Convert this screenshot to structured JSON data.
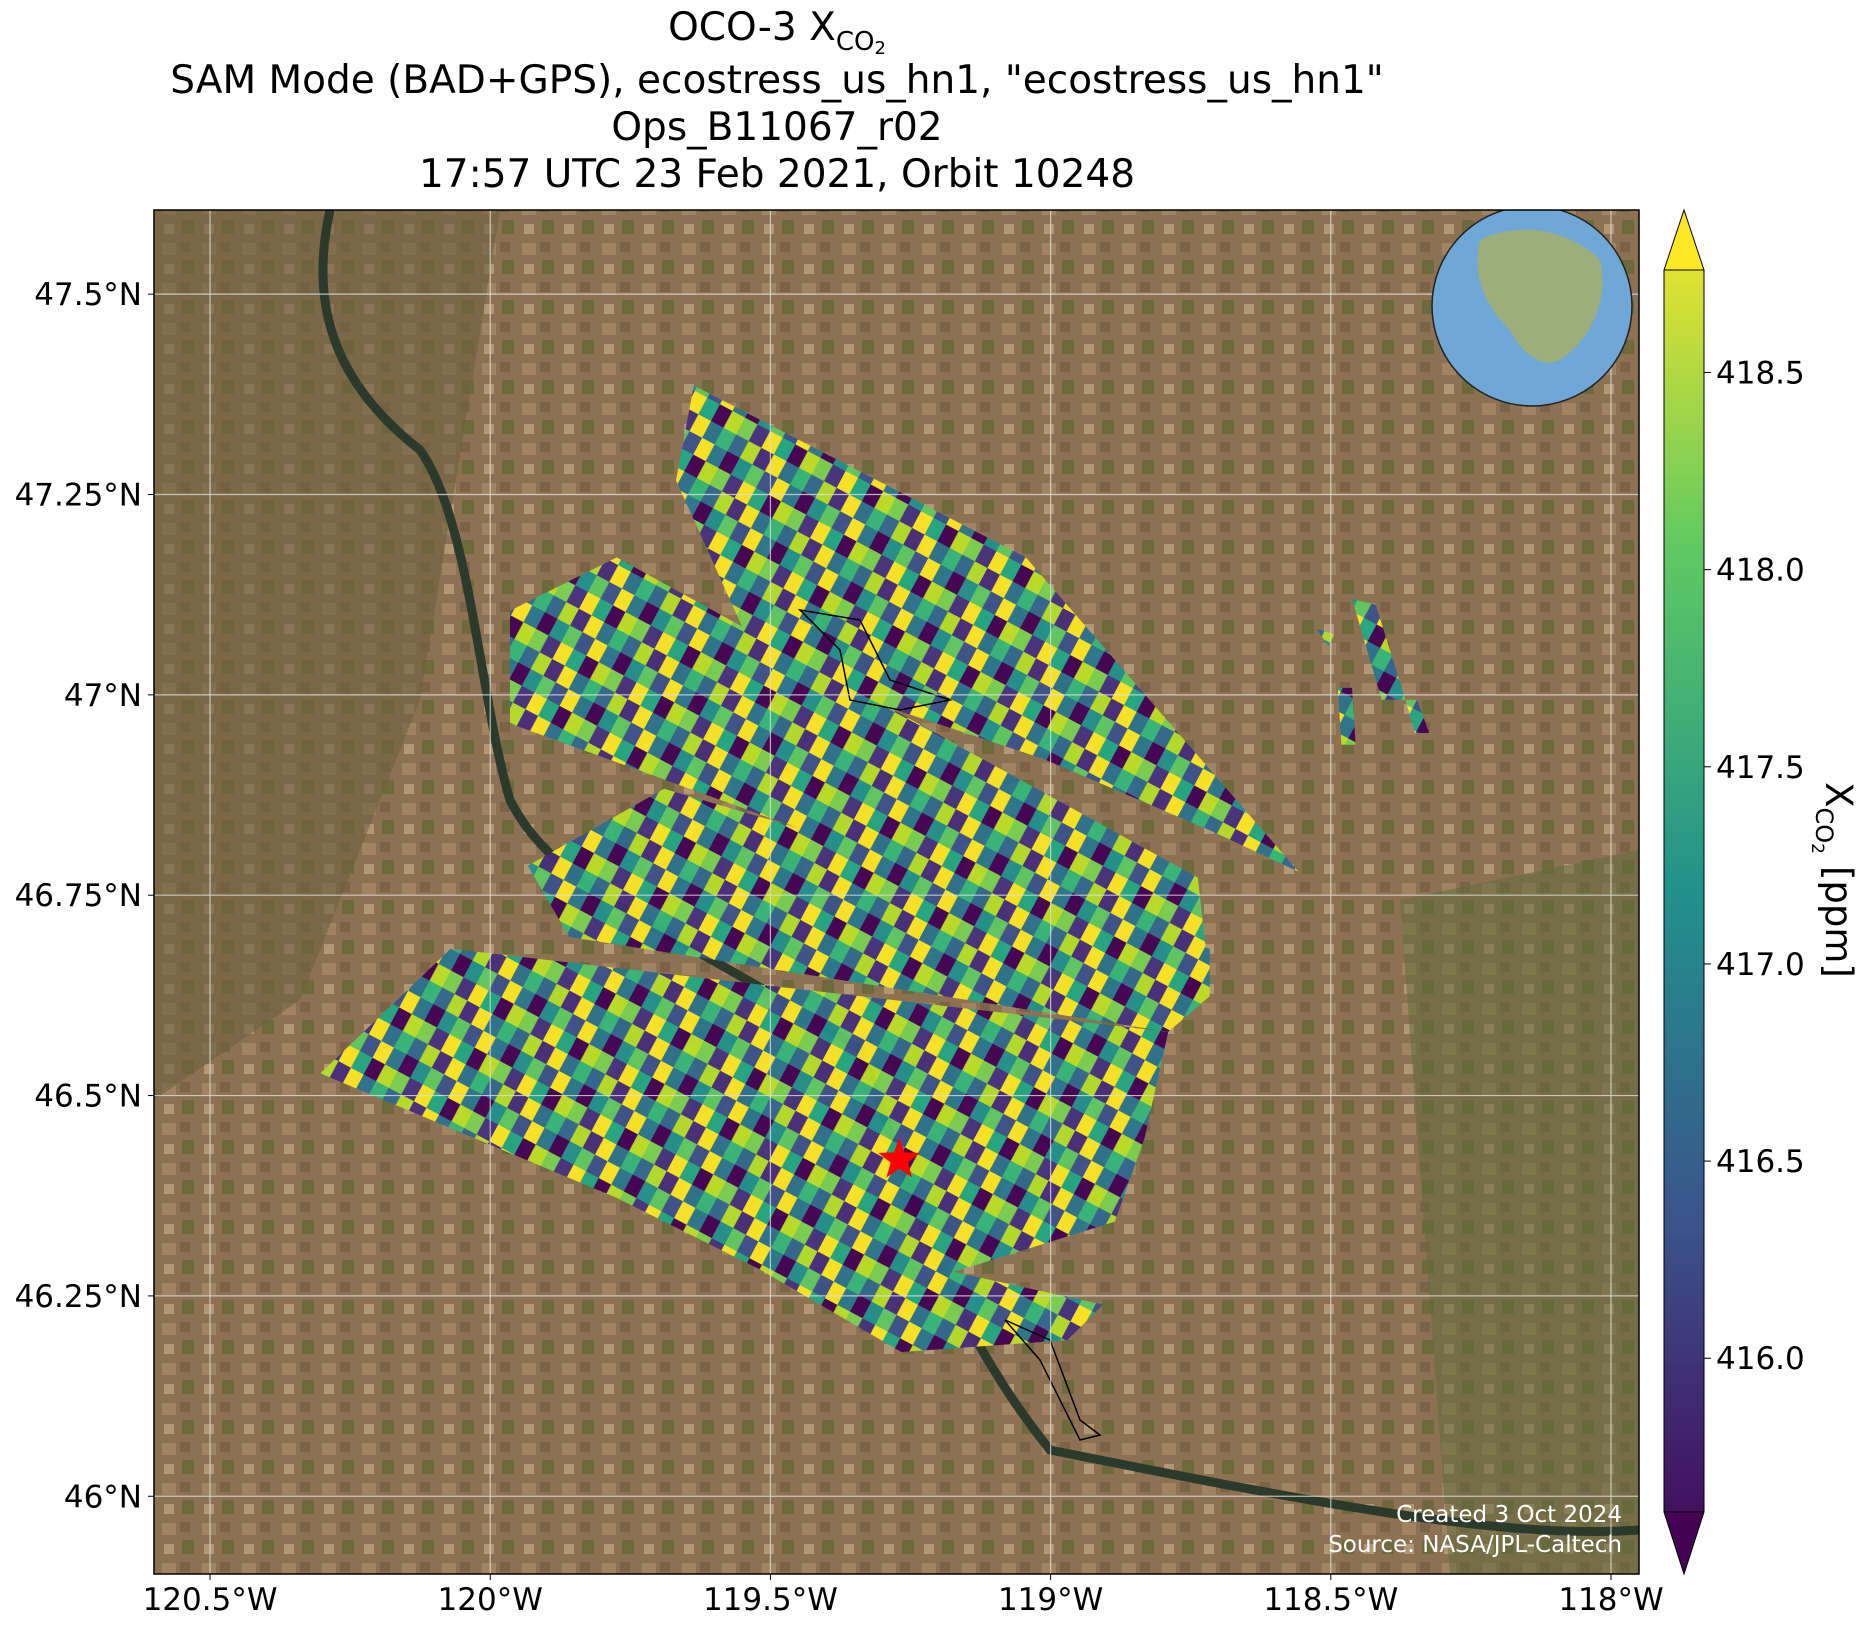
{
  "title": {
    "line1": {
      "text": "OCO-3 X",
      "sub": "CO",
      "subsub": "2"
    },
    "line2": "SAM Mode (BAD+GPS), ecostress_us_hn1, \"ecostress_us_hn1\"",
    "line3": "Ops_B11067_r02",
    "line4": "17:57 UTC 23 Feb 2021, Orbit 10248"
  },
  "map": {
    "lonlim": [
      -120.6,
      -117.95
    ],
    "latlim": [
      45.903,
      47.605
    ],
    "lon_ticks": [
      {
        "value": -120.5,
        "label": "120.5°W"
      },
      {
        "value": -120,
        "label": "120°W"
      },
      {
        "value": -119.5,
        "label": "119.5°W"
      },
      {
        "value": -119,
        "label": "119°W"
      },
      {
        "value": -118.5,
        "label": "118.5°W"
      },
      {
        "value": -118,
        "label": "118°W"
      }
    ],
    "lat_ticks": [
      {
        "value": 47.5,
        "label": "47.5°N"
      },
      {
        "value": 47.25,
        "label": "47.25°N"
      },
      {
        "value": 47,
        "label": "47°N"
      },
      {
        "value": 46.75,
        "label": "46.75°N"
      },
      {
        "value": 46.5,
        "label": "46.5°N"
      },
      {
        "value": 46.25,
        "label": "46.25°N"
      },
      {
        "value": 46,
        "label": "46°N"
      }
    ],
    "grid": true,
    "target": {
      "lon": -119.27,
      "lat": 46.42,
      "color": "#ff0000"
    }
  },
  "colorbar": {
    "clim": [
      415.61,
      418.76
    ],
    "ticks": [
      {
        "value": 418.5,
        "label": "418.5"
      },
      {
        "value": 418,
        "label": "418.0"
      },
      {
        "value": 417.5,
        "label": "417.5"
      },
      {
        "value": 417,
        "label": "417.0"
      },
      {
        "value": 416.5,
        "label": "416.5"
      },
      {
        "value": 416,
        "label": "416.0"
      }
    ],
    "label": {
      "text": "X",
      "sub": "CO",
      "subsub": "2",
      "unit": "[ppm]"
    }
  },
  "credits": {
    "created": "Created 3 Oct 2024",
    "source": "Source: NASA/JPL-Caltech"
  }
}
